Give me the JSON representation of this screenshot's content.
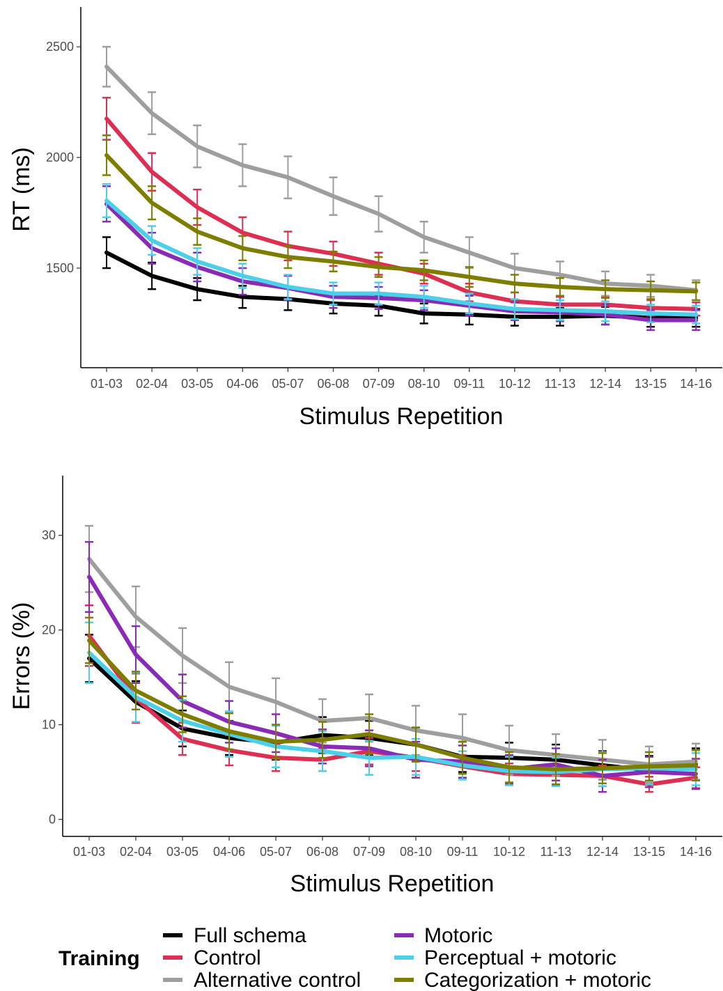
{
  "chart_data": [
    {
      "type": "line",
      "title": "",
      "xlabel": "Stimulus Repetition",
      "ylabel": "RT (ms)",
      "categories": [
        "01-03",
        "02-04",
        "03-05",
        "04-06",
        "05-07",
        "06-08",
        "07-09",
        "08-10",
        "09-11",
        "10-12",
        "11-13",
        "12-14",
        "13-15",
        "14-16"
      ],
      "ylim": [
        1050,
        2680
      ],
      "yticks": [
        1500,
        2000,
        2500
      ],
      "grid": false,
      "error_bars": true,
      "series": [
        {
          "name": "Full schema",
          "color": "#000000",
          "values": [
            1570,
            1465,
            1405,
            1370,
            1360,
            1340,
            1330,
            1295,
            1290,
            1280,
            1280,
            1285,
            1275,
            1275
          ],
          "errors": [
            70,
            60,
            50,
            50,
            50,
            45,
            45,
            45,
            45,
            40,
            40,
            40,
            40,
            40
          ]
        },
        {
          "name": "Control",
          "color": "#dc2f52",
          "values": [
            2175,
            1935,
            1775,
            1660,
            1600,
            1565,
            1520,
            1475,
            1390,
            1350,
            1335,
            1335,
            1320,
            1315
          ],
          "errors": [
            95,
            85,
            80,
            70,
            65,
            55,
            50,
            45,
            40,
            40,
            35,
            35,
            35,
            30
          ]
        },
        {
          "name": "Alternative control",
          "color": "#9e9e9e",
          "values": [
            2410,
            2200,
            2050,
            1965,
            1910,
            1825,
            1745,
            1640,
            1570,
            1500,
            1470,
            1430,
            1420,
            1400
          ],
          "errors": [
            90,
            95,
            95,
            95,
            95,
            85,
            80,
            70,
            70,
            65,
            60,
            55,
            50,
            45
          ]
        },
        {
          "name": "Motoric",
          "color": "#8a2bb5",
          "values": [
            1790,
            1590,
            1505,
            1440,
            1410,
            1370,
            1365,
            1355,
            1330,
            1305,
            1300,
            1290,
            1265,
            1265
          ],
          "errors": [
            80,
            70,
            65,
            60,
            55,
            50,
            50,
            45,
            45,
            40,
            40,
            45,
            45,
            45
          ]
        },
        {
          "name": "Perceptual + motoric",
          "color": "#4ccfe8",
          "values": [
            1805,
            1625,
            1530,
            1465,
            1415,
            1385,
            1385,
            1370,
            1340,
            1315,
            1310,
            1305,
            1295,
            1290
          ],
          "errors": [
            75,
            65,
            60,
            55,
            55,
            50,
            50,
            50,
            45,
            45,
            45,
            45,
            40,
            40
          ]
        },
        {
          "name": "Categorization + motoric",
          "color": "#7d7d00",
          "values": [
            2010,
            1795,
            1665,
            1590,
            1550,
            1530,
            1505,
            1490,
            1460,
            1430,
            1415,
            1405,
            1400,
            1395
          ],
          "errors": [
            90,
            75,
            60,
            55,
            50,
            45,
            45,
            45,
            45,
            40,
            40,
            40,
            40,
            40
          ]
        }
      ]
    },
    {
      "type": "line",
      "title": "",
      "xlabel": "Stimulus Repetition",
      "ylabel": "Errors (%)",
      "categories": [
        "01-03",
        "02-04",
        "03-05",
        "04-06",
        "05-07",
        "06-08",
        "07-09",
        "08-10",
        "09-11",
        "10-12",
        "11-13",
        "12-14",
        "13-15",
        "14-16"
      ],
      "ylim": [
        -1.8,
        36.3
      ],
      "yticks": [
        0,
        10,
        20,
        30
      ],
      "grid": false,
      "error_bars": true,
      "series": [
        {
          "name": "Full schema",
          "color": "#000000",
          "values": [
            17.0,
            12.4,
            9.6,
            8.6,
            8.1,
            8.9,
            8.6,
            7.9,
            6.6,
            6.5,
            6.3,
            5.7,
            5.2,
            5.8
          ],
          "errors": [
            2.5,
            2.2,
            1.9,
            1.8,
            1.8,
            1.9,
            1.8,
            1.8,
            1.6,
            1.6,
            1.6,
            1.5,
            1.5,
            1.7
          ]
        },
        {
          "name": "Control",
          "color": "#dc2f52",
          "values": [
            19.4,
            12.8,
            8.5,
            7.3,
            6.5,
            6.3,
            7.2,
            6.5,
            5.6,
            4.8,
            4.7,
            4.6,
            3.7,
            4.4
          ],
          "errors": [
            3.2,
            2.6,
            1.7,
            1.6,
            1.4,
            1.2,
            1.4,
            1.4,
            1.2,
            1.1,
            1.1,
            1.1,
            0.8,
            1.1
          ]
        },
        {
          "name": "Alternative control",
          "color": "#9e9e9e",
          "values": [
            27.5,
            21.4,
            17.3,
            14.0,
            12.4,
            10.4,
            10.7,
            9.4,
            8.6,
            7.3,
            6.8,
            6.3,
            5.8,
            6.1
          ],
          "errors": [
            3.5,
            3.2,
            2.9,
            2.6,
            2.5,
            2.3,
            2.5,
            2.6,
            2.5,
            2.6,
            2.2,
            2.1,
            1.9,
            1.9
          ]
        },
        {
          "name": "Motoric",
          "color": "#8a2bb5",
          "values": [
            25.6,
            17.4,
            12.5,
            10.3,
            9.1,
            7.7,
            7.5,
            6.3,
            6.1,
            5.3,
            5.8,
            4.6,
            5.0,
            4.8
          ],
          "errors": [
            3.7,
            3.0,
            2.8,
            2.2,
            2.0,
            1.8,
            1.9,
            1.9,
            1.7,
            1.5,
            1.7,
            1.7,
            1.6,
            1.6
          ]
        },
        {
          "name": "Perceptual + motoric",
          "color": "#4ccfe8",
          "values": [
            17.6,
            12.9,
            10.4,
            9.0,
            7.7,
            7.2,
            6.5,
            6.6,
            5.7,
            5.1,
            5.0,
            5.3,
            5.4,
            5.3
          ],
          "errors": [
            3.2,
            2.6,
            2.2,
            2.4,
            2.2,
            2.1,
            1.8,
            1.9,
            1.5,
            1.5,
            1.5,
            1.8,
            1.7,
            1.7
          ]
        },
        {
          "name": "Categorization + motoric",
          "color": "#7d7d00",
          "values": [
            18.9,
            13.6,
            11.1,
            9.3,
            8.2,
            8.4,
            9.0,
            7.9,
            6.5,
            5.5,
            5.3,
            5.4,
            5.6,
            5.7
          ],
          "errors": [
            2.4,
            2.0,
            1.9,
            1.9,
            1.8,
            1.9,
            2.1,
            1.8,
            1.7,
            1.6,
            1.6,
            1.6,
            1.5,
            1.6
          ]
        }
      ]
    }
  ],
  "legend": {
    "title": "Training",
    "items": [
      {
        "label": "Full schema",
        "color": "#000000"
      },
      {
        "label": "Control",
        "color": "#dc2f52"
      },
      {
        "label": "Alternative control",
        "color": "#9e9e9e"
      },
      {
        "label": "Motoric",
        "color": "#8a2bb5"
      },
      {
        "label": "Perceptual + motoric",
        "color": "#4ccfe8"
      },
      {
        "label": "Categorization + motoric",
        "color": "#7d7d00"
      }
    ]
  }
}
